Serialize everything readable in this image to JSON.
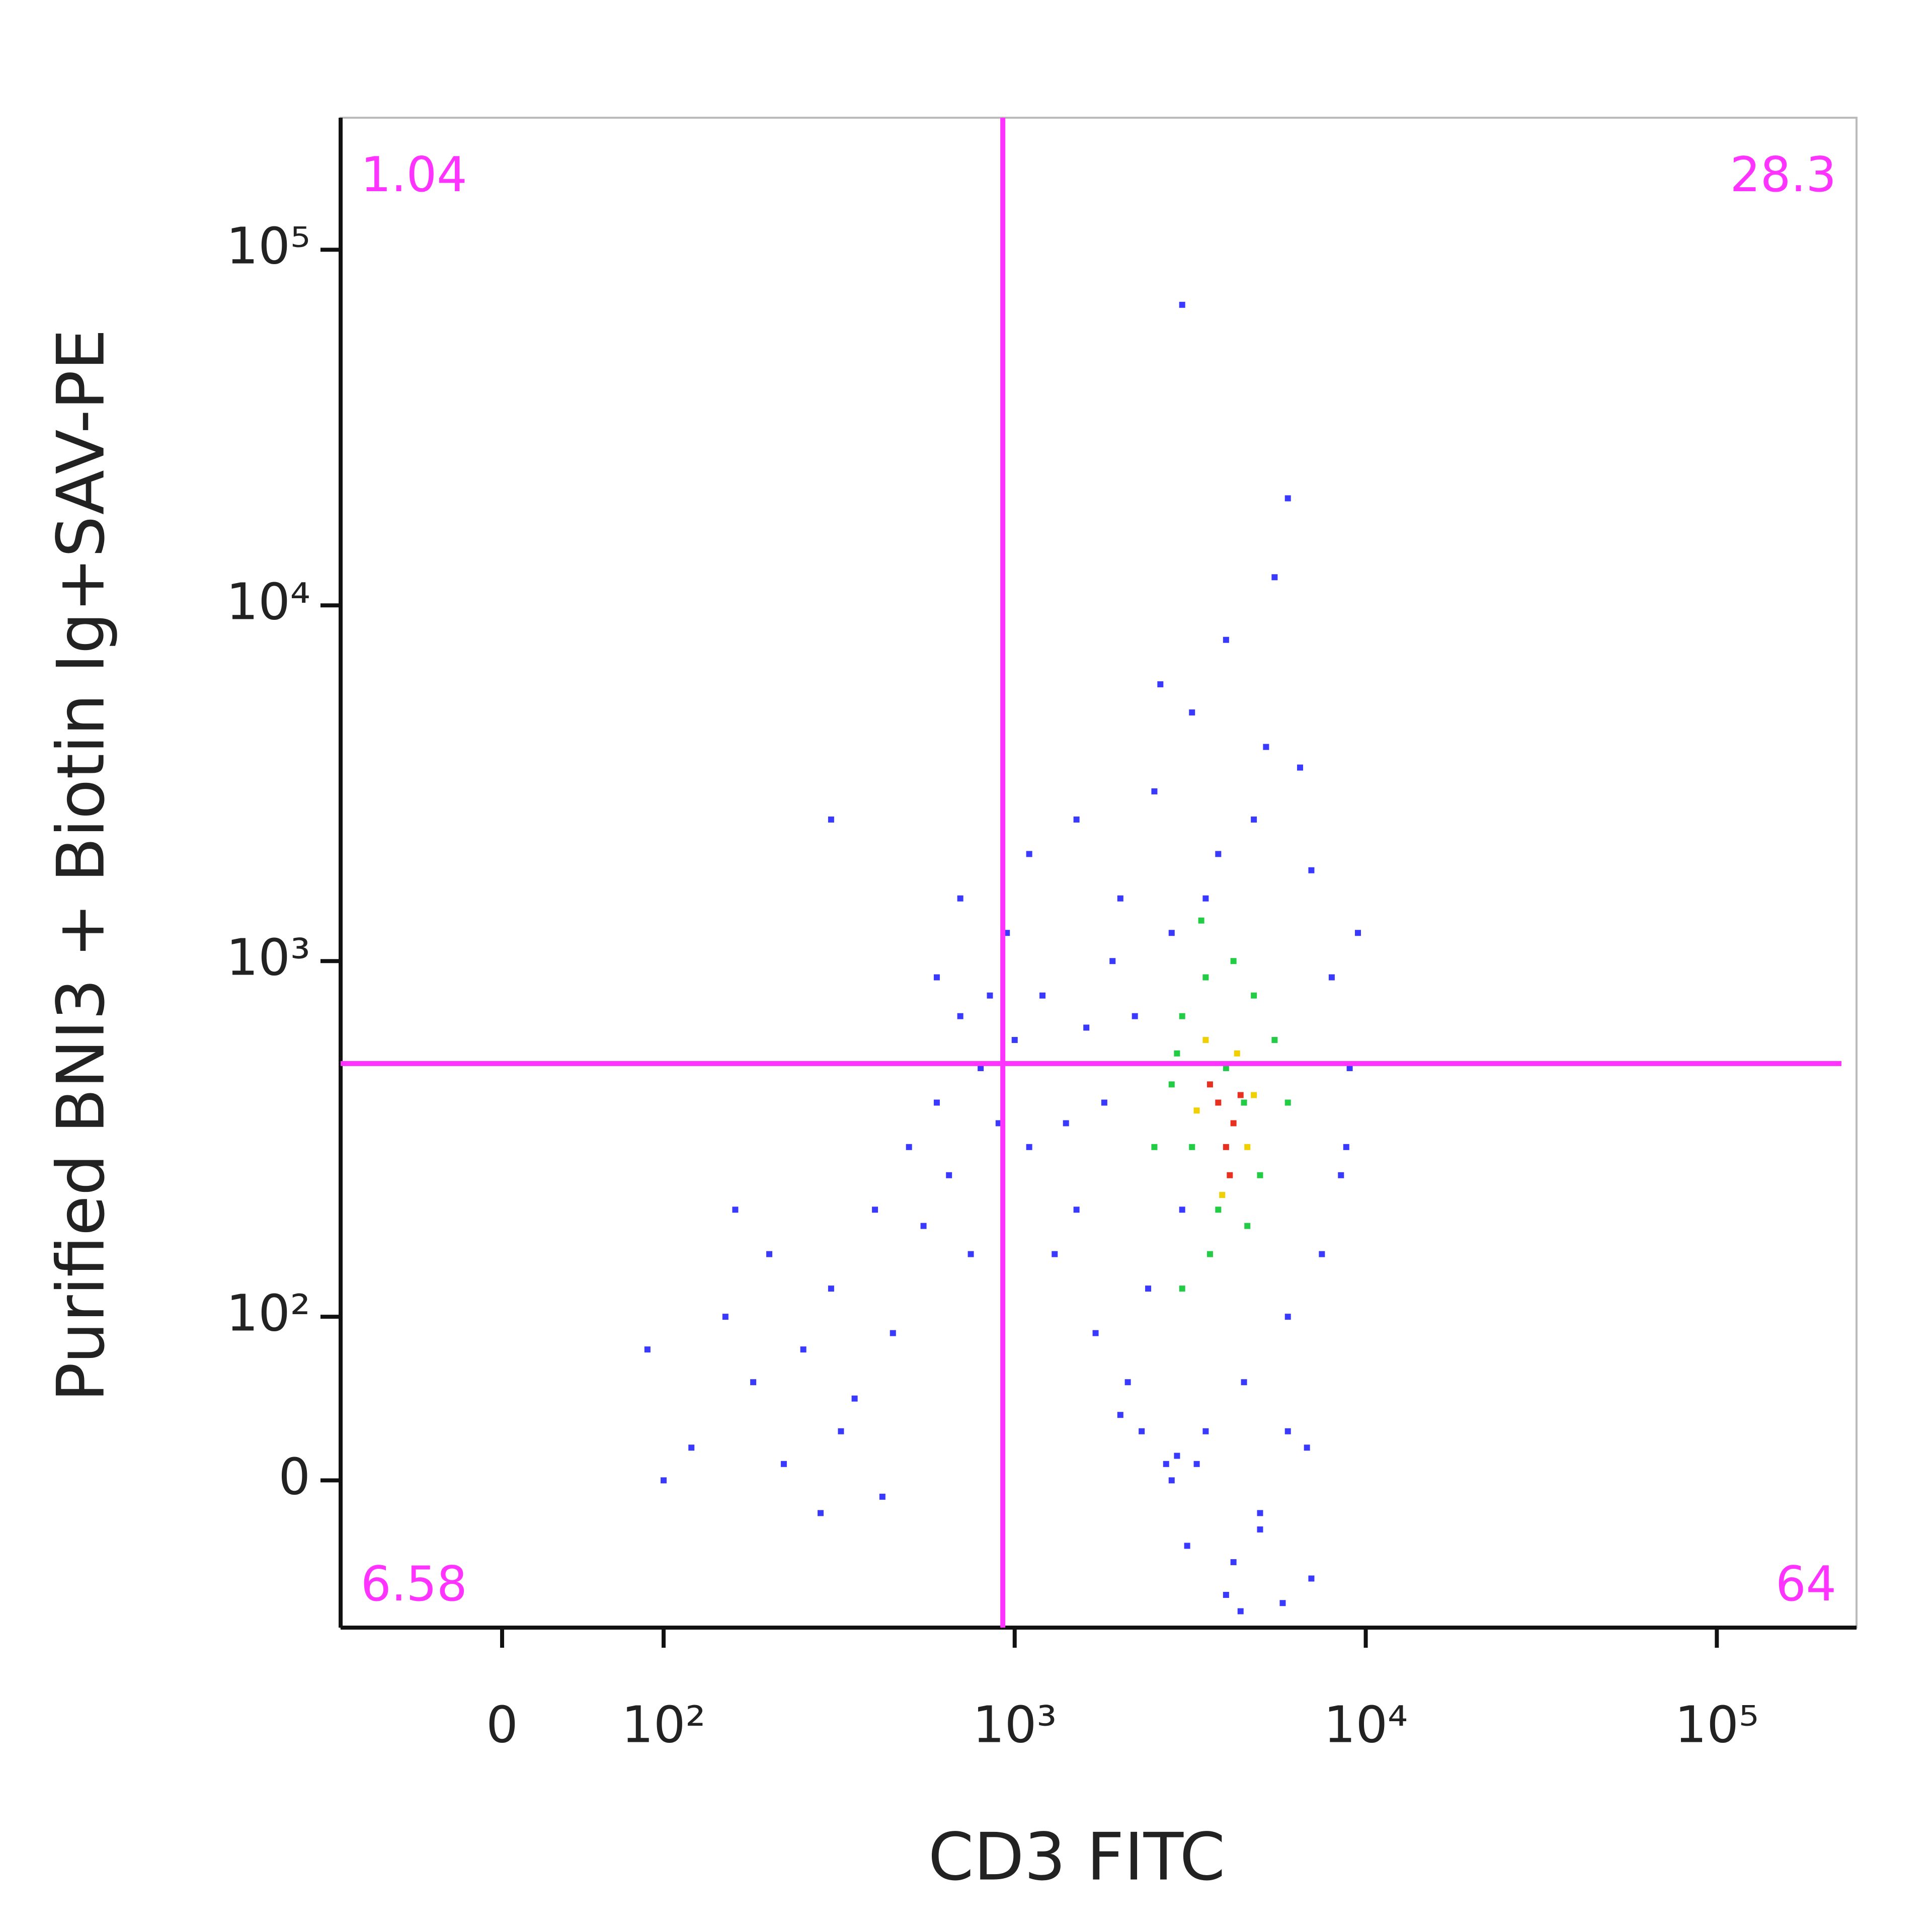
{
  "chart_data": {
    "type": "scatter",
    "x_label": "CD3 FITC",
    "y_label": "Purified BNI3 + Biotin Ig+SAV-PE",
    "scale": "biexponential",
    "xlim": [
      -100,
      250000
    ],
    "ylim": [
      -90,
      235000
    ],
    "xticks": [
      0,
      {
        "value": 100,
        "label": "10²"
      },
      {
        "value": 1000,
        "label": "10³"
      },
      {
        "value": 10000,
        "label": "10⁴"
      },
      {
        "value": 100000,
        "label": "10⁵"
      }
    ],
    "yticks": [
      0,
      {
        "value": 100,
        "label": "10²"
      },
      {
        "value": 1000,
        "label": "10³"
      },
      {
        "value": 10000,
        "label": "10⁴"
      },
      {
        "value": 100000,
        "label": "10⁵"
      }
    ],
    "gate_color": "#ff33ff",
    "gates": {
      "x": 925,
      "y": 515
    },
    "quadrants": {
      "upper_left": 1.04,
      "upper_right": 28.3,
      "lower_left": 6.58,
      "lower_right": 64
    },
    "series": [
      {
        "color": "#3a3aff",
        "x": [
          2500,
          3200,
          4000,
          5500,
          6000,
          3500,
          2800,
          7000,
          8000,
          2200,
          1800,
          9000,
          3000,
          2400,
          6000,
          4500,
          3500,
          2800,
          5000,
          4200,
          7500,
          8500,
          2000,
          1500,
          1200,
          1100,
          1300,
          4800,
          5200,
          3800,
          6500,
          2600,
          9500,
          4000,
          3000,
          2000,
          5000,
          7000,
          6000,
          3300,
          150,
          200,
          250,
          300,
          180,
          400,
          500,
          600,
          700,
          450,
          350,
          120,
          100,
          220,
          280,
          800,
          650,
          900,
          750,
          550,
          90,
          160,
          320,
          420,
          850,
          1000,
          950,
          1100,
          600,
          700,
          300,
          1500,
          1700,
          2100,
          2300,
          2700,
          3100,
          4400,
          5800,
          6800,
          8800,
          1900,
          1400,
          1600,
          2900
        ],
        "y": [
          3000,
          5000,
          8000,
          12000,
          20000,
          1500,
          1200,
          1800,
          900,
          700,
          400,
          500,
          200,
          120,
          100,
          60,
          30,
          0,
          -20,
          -50,
          150,
          250,
          1500,
          2500,
          800,
          300,
          150,
          2500,
          4000,
          2000,
          3500,
          6000,
          1200,
          -70,
          70000,
          40,
          -30,
          -60,
          30,
          10,
          100,
          150,
          80,
          120,
          60,
          200,
          300,
          400,
          700,
          90,
          50,
          20,
          0,
          10,
          -20,
          500,
          250,
          350,
          150,
          180,
          80,
          200,
          30,
          -10,
          800,
          600,
          1200,
          2000,
          900,
          1500,
          2500,
          200,
          90,
          60,
          30,
          10,
          -40,
          -80,
          -75,
          20,
          300,
          1000,
          350,
          650,
          15
        ]
      },
      {
        "color": "#22cc44",
        "x": [
          3000,
          3500,
          4000,
          4500,
          3200,
          3800,
          5000,
          2800,
          4200,
          3600,
          5500,
          3000,
          4800,
          2500,
          6000,
          3400,
          4600,
          2900
        ],
        "y": [
          700,
          900,
          500,
          400,
          300,
          200,
          250,
          450,
          1000,
          150,
          600,
          120,
          800,
          300,
          400,
          1300,
          180,
          550
        ]
      },
      {
        "color": "#f0d000",
        "x": [
          3500,
          4300,
          3900,
          4600,
          3300,
          4800
        ],
        "y": [
          600,
          550,
          220,
          300,
          380,
          420
        ]
      },
      {
        "color": "#e83020",
        "x": [
          3800,
          4200,
          4000,
          3600,
          4400,
          4100
        ],
        "y": [
          400,
          350,
          300,
          450,
          420,
          250
        ]
      }
    ]
  }
}
